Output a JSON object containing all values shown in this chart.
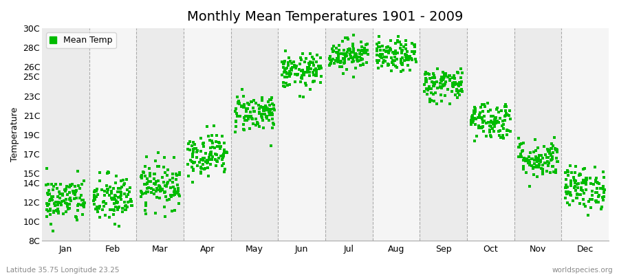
{
  "title": "Monthly Mean Temperatures 1901 - 2009",
  "ylabel": "Temperature",
  "bottom_left": "Latitude 35.75 Longitude 23.25",
  "bottom_right": "worldspecies.org",
  "legend_label": "Mean Temp",
  "marker_color": "#00BB00",
  "marker": "s",
  "marker_size": 2.5,
  "ylim": [
    8,
    30
  ],
  "ytick_labels": [
    "8C",
    "10C",
    "12C",
    "14C",
    "15C",
    "17C",
    "19C",
    "21C",
    "23C",
    "25C",
    "26C",
    "28C",
    "30C"
  ],
  "ytick_values": [
    8,
    10,
    12,
    14,
    15,
    17,
    19,
    21,
    23,
    25,
    26,
    28,
    30
  ],
  "months": [
    "Jan",
    "Feb",
    "Mar",
    "Apr",
    "May",
    "Jun",
    "Jul",
    "Aug",
    "Sep",
    "Oct",
    "Nov",
    "Dec"
  ],
  "mean_temps": [
    12.2,
    12.3,
    13.8,
    17.0,
    21.3,
    25.5,
    27.3,
    27.1,
    24.2,
    20.5,
    16.5,
    13.5
  ],
  "std_temps": [
    1.2,
    1.3,
    1.2,
    1.1,
    1.0,
    0.9,
    0.8,
    0.8,
    0.9,
    1.0,
    1.0,
    1.1
  ],
  "n_years": 109,
  "bg_color_light": "#EBEBEB",
  "bg_color_white": "#F5F5F5",
  "grid_color": "#999999",
  "title_fontsize": 14,
  "label_fontsize": 9,
  "tick_fontsize": 9
}
